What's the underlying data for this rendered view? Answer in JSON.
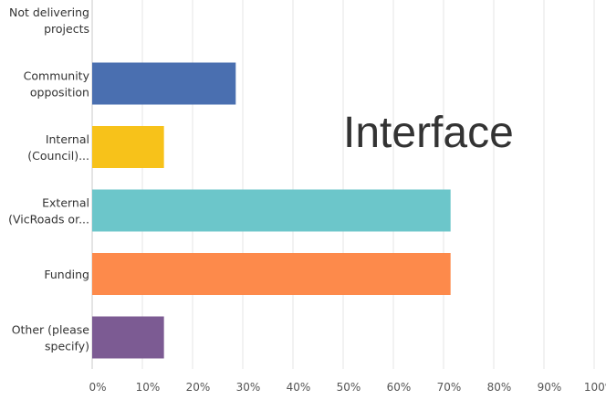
{
  "overlay_text": "Interface",
  "chart_data": {
    "type": "bar",
    "orientation": "horizontal",
    "categories": [
      [
        "Not delivering",
        "projects"
      ],
      [
        "Community",
        "opposition"
      ],
      [
        "Internal",
        "(Council)..."
      ],
      [
        "External",
        "(VicRoads or..."
      ],
      [
        "Funding"
      ],
      [
        "Other (please",
        "specify)"
      ]
    ],
    "values": [
      0,
      28.6,
      14.3,
      71.4,
      71.4,
      14.3
    ],
    "colors": [
      "#4a6fb0",
      "#4a6fb0",
      "#f7c21a",
      "#6cc6ca",
      "#fd8a4b",
      "#7c5b93"
    ],
    "x_ticks": [
      "0%",
      "10%",
      "20%",
      "30%",
      "40%",
      "50%",
      "60%",
      "70%",
      "80%",
      "90%",
      "100%"
    ],
    "xlim": [
      0,
      100
    ],
    "grid": true,
    "title": "",
    "xlabel": "",
    "ylabel": ""
  }
}
